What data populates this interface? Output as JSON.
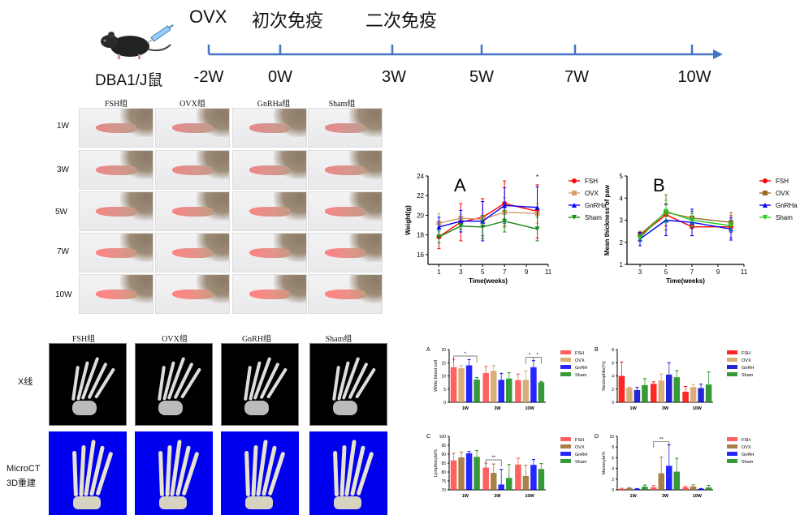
{
  "timeline": {
    "subject": "DBA1/J鼠",
    "events": [
      {
        "label": "OVX",
        "time": "-2W"
      },
      {
        "label": "初次免疫",
        "time": "0W"
      },
      {
        "label": "二次免疫",
        "time": "3W"
      }
    ],
    "ticks": [
      "-2W",
      "0W",
      "3W",
      "5W",
      "7W",
      "10W"
    ],
    "line_color": "#4472c4",
    "icons": [
      "mouse-icon",
      "syringe-icon"
    ]
  },
  "paw_photos": {
    "columns": [
      "FSH组",
      "OVX组",
      "GnRHa组",
      "Sham组"
    ],
    "rows": [
      "1W",
      "3W",
      "5W",
      "7W",
      "10W"
    ]
  },
  "imaging": {
    "columns": [
      "FSH组",
      "OVX组",
      "GnRH组",
      "Sham组"
    ],
    "rows": [
      {
        "label": "X线"
      },
      {
        "label_line1": "MicroCT",
        "label_line2": "3D重建"
      }
    ]
  },
  "chart_data": [
    {
      "type": "line",
      "panel": "A",
      "xlabel": "Time(weeks)",
      "ylabel": "Weight(g)",
      "x": [
        1,
        3,
        5,
        7,
        10
      ],
      "xlim": [
        0,
        11
      ],
      "xticks": [
        1,
        3,
        5,
        7,
        9,
        11
      ],
      "ylim": [
        15,
        24
      ],
      "yticks": [
        16,
        18,
        20,
        22,
        24
      ],
      "legend": "right",
      "annotations": [
        {
          "x": 10,
          "text": "*"
        }
      ],
      "series": [
        {
          "name": "FSH",
          "color": "#ff0000",
          "marker": "circle",
          "values": [
            17.8,
            19.3,
            19.8,
            21.2,
            20.4
          ],
          "errors": [
            1.2,
            1.9,
            1.9,
            2.3,
            2.7
          ]
        },
        {
          "name": "OVX",
          "color": "#d2a06a",
          "marker": "square",
          "values": [
            19.2,
            19.7,
            19.6,
            20.3,
            20.2
          ],
          "errors": [
            1.0,
            0.4,
            0.3,
            1.5,
            1.0
          ]
        },
        {
          "name": "GnRHa",
          "color": "#0000ff",
          "marker": "triangle-up",
          "values": [
            18.8,
            19.4,
            19.4,
            21.0,
            20.8
          ],
          "errors": [
            1.0,
            1.1,
            2.0,
            1.8,
            2.1
          ]
        },
        {
          "name": "Sham",
          "color": "#1a8a1a",
          "marker": "triangle-down",
          "values": [
            17.8,
            18.9,
            18.8,
            19.4,
            18.6
          ],
          "errors": [
            0.6,
            0.3,
            1.2,
            1.1,
            1.2
          ]
        }
      ]
    },
    {
      "type": "line",
      "panel": "B",
      "xlabel": "Time(weeks)",
      "ylabel": "Mean thickness of paw",
      "x": [
        3,
        5,
        7,
        10
      ],
      "xlim": [
        2,
        11
      ],
      "xticks": [
        3,
        5,
        7,
        9,
        11
      ],
      "ylim": [
        1,
        5
      ],
      "yticks": [
        1,
        2,
        3,
        4,
        5
      ],
      "legend": "right",
      "series": [
        {
          "name": "FSH",
          "color": "#ff0000",
          "marker": "circle",
          "values": [
            2.3,
            3.25,
            2.7,
            2.7
          ],
          "errors": [
            0.2,
            0.5,
            0.4,
            0.5
          ]
        },
        {
          "name": "OVX",
          "color": "#9a6a2a",
          "marker": "square",
          "values": [
            2.35,
            3.35,
            3.1,
            2.9
          ],
          "errors": [
            0.15,
            0.8,
            0.3,
            0.45
          ]
        },
        {
          "name": "GnRHa",
          "color": "#0000ff",
          "marker": "triangle-up",
          "values": [
            2.15,
            3.0,
            2.9,
            2.6
          ],
          "errors": [
            0.3,
            0.7,
            0.6,
            0.5
          ]
        },
        {
          "name": "Sham",
          "color": "#22cc22",
          "marker": "triangle-down",
          "values": [
            2.2,
            3.4,
            3.0,
            2.75
          ],
          "errors": [
            0.1,
            0.5,
            0.3,
            0.2
          ]
        }
      ]
    },
    {
      "type": "bar",
      "panel": "A",
      "ylabel": "White blood cell",
      "categories": [
        "1W",
        "3W",
        "10W"
      ],
      "ylim": [
        0,
        20
      ],
      "yticks": [
        0,
        5,
        10,
        15,
        20
      ],
      "legend": "right",
      "annotations": [
        {
          "category": "1W",
          "from": "FSH",
          "to": "Sham",
          "text": "*"
        },
        {
          "category": "10W",
          "from": "OVX",
          "to": "GnRH",
          "text": "*"
        },
        {
          "category": "10W",
          "from": "GnRH",
          "to": "Sham",
          "text": "*"
        }
      ],
      "series": [
        {
          "name": "FSH",
          "color": "#ff4444",
          "values": [
            13.3,
            11.1,
            8.4
          ],
          "errors": [
            3.0,
            2.5,
            2.3
          ]
        },
        {
          "name": "OVX",
          "color": "#d2a060",
          "values": [
            12.9,
            11.9,
            8.5
          ],
          "errors": [
            1.0,
            2.0,
            3.4
          ]
        },
        {
          "name": "GnRH",
          "color": "#0000ff",
          "values": [
            14.0,
            8.5,
            13.3
          ],
          "errors": [
            2.2,
            2.5,
            2.5
          ]
        },
        {
          "name": "Sham",
          "color": "#138a13",
          "values": [
            8.6,
            9.0,
            7.6
          ],
          "errors": [
            0.8,
            2.2,
            0.3
          ]
        }
      ]
    },
    {
      "type": "bar",
      "panel": "B",
      "ylabel": "Neutrophils(%)",
      "categories": [
        "1W",
        "3W",
        "10W"
      ],
      "ylim": [
        0,
        8
      ],
      "yticks": [
        0,
        2,
        4,
        6,
        8
      ],
      "legend": "right",
      "series": [
        {
          "name": "FSH",
          "color": "#ff0000",
          "values": [
            4.0,
            2.8,
            1.6
          ],
          "errors": [
            2.1,
            0.3,
            0.8
          ]
        },
        {
          "name": "OVX",
          "color": "#d2a060",
          "values": [
            2.2,
            3.3,
            2.3
          ],
          "errors": [
            0.1,
            1.0,
            0.4
          ]
        },
        {
          "name": "GnRH",
          "color": "#0000cc",
          "values": [
            1.85,
            4.2,
            2.15
          ],
          "errors": [
            0.4,
            1.8,
            0.6
          ]
        },
        {
          "name": "Sham",
          "color": "#138a13",
          "values": [
            2.6,
            3.8,
            2.7
          ],
          "errors": [
            1.0,
            1.0,
            1.9
          ]
        }
      ]
    },
    {
      "type": "bar",
      "panel": "C",
      "ylabel": "Lymphocyte%",
      "categories": [
        "1W",
        "3W",
        "10W"
      ],
      "ylim": [
        70,
        100
      ],
      "yticks": [
        70,
        75,
        80,
        85,
        90,
        95,
        100
      ],
      "legend": "right",
      "annotations": [
        {
          "category": "3W",
          "from": "FSH",
          "to": "GnRH",
          "text": "**"
        }
      ],
      "series": [
        {
          "name": "FSH",
          "color": "#ff4444",
          "values": [
            86.5,
            82.5,
            84.2
          ],
          "errors": [
            4.0,
            2.5,
            3.5
          ]
        },
        {
          "name": "OVX",
          "color": "#9a6a2a",
          "values": [
            88.2,
            79.5,
            77.8
          ],
          "errors": [
            3.0,
            5.0,
            6.0
          ]
        },
        {
          "name": "GnRH",
          "color": "#0000ff",
          "values": [
            90.5,
            73.0,
            84.0
          ],
          "errors": [
            1.0,
            8.5,
            3.0
          ]
        },
        {
          "name": "Sham",
          "color": "#138a13",
          "values": [
            88.5,
            76.7,
            81.7
          ],
          "errors": [
            3.5,
            7.5,
            3.0
          ]
        }
      ]
    },
    {
      "type": "bar",
      "panel": "D",
      "ylabel": "Monocyte%",
      "categories": [
        "1W",
        "3W",
        "10W"
      ],
      "ylim": [
        0,
        10
      ],
      "yticks": [
        0,
        2,
        4,
        6,
        8,
        10
      ],
      "legend": "right",
      "annotations": [
        {
          "category": "3W",
          "from": "FSH",
          "to": "GnRH",
          "text": "**"
        }
      ],
      "series": [
        {
          "name": "FSH",
          "color": "#ff4444",
          "values": [
            0.2,
            0.5,
            0.5
          ],
          "errors": [
            0.1,
            0.3,
            0.15
          ]
        },
        {
          "name": "OVX",
          "color": "#9a6a2a",
          "values": [
            0.35,
            3.1,
            0.65
          ],
          "errors": [
            0.05,
            3.0,
            0.3
          ]
        },
        {
          "name": "GnRH",
          "color": "#0000ff",
          "values": [
            0.2,
            4.5,
            0.2
          ],
          "errors": [
            0.05,
            3.9,
            0.05
          ]
        },
        {
          "name": "Sham",
          "color": "#138a13",
          "values": [
            0.6,
            3.4,
            0.45
          ],
          "errors": [
            0.3,
            2.5,
            0.4
          ]
        }
      ]
    }
  ]
}
